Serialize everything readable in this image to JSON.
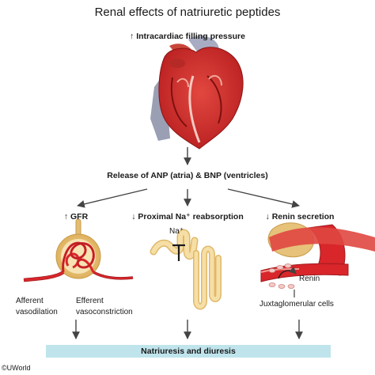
{
  "title": "Renal effects of natriuretic peptides",
  "trigger": {
    "arrow": "↑",
    "text": "Intracardiac filling pressure"
  },
  "release": "Release of ANP (atria) & BNP (ventricles)",
  "effects": [
    {
      "arrow": "↑",
      "text": "GFR"
    },
    {
      "arrow": "↓",
      "text": "Proximal Na⁺ reabsorption"
    },
    {
      "arrow": "↓",
      "text": "Renin secretion"
    }
  ],
  "glomerulus_labels": {
    "afferent": [
      "Afferent",
      "vasodilation"
    ],
    "efferent": [
      "Efferent",
      "vasoconstriction"
    ]
  },
  "tubule_label": "Na⁺",
  "renin_label": "Renin",
  "jg_label": "Juxtaglomerular cells",
  "outcome": "Natriuresis and diuresis",
  "copyright": "©UWorld",
  "colors": {
    "vessel": "#d8262b",
    "vessel_dark": "#a11a1e",
    "tubule": "#f4d79a",
    "tubule_edge": "#e0b86a",
    "bar": "#bfe4ec"
  }
}
